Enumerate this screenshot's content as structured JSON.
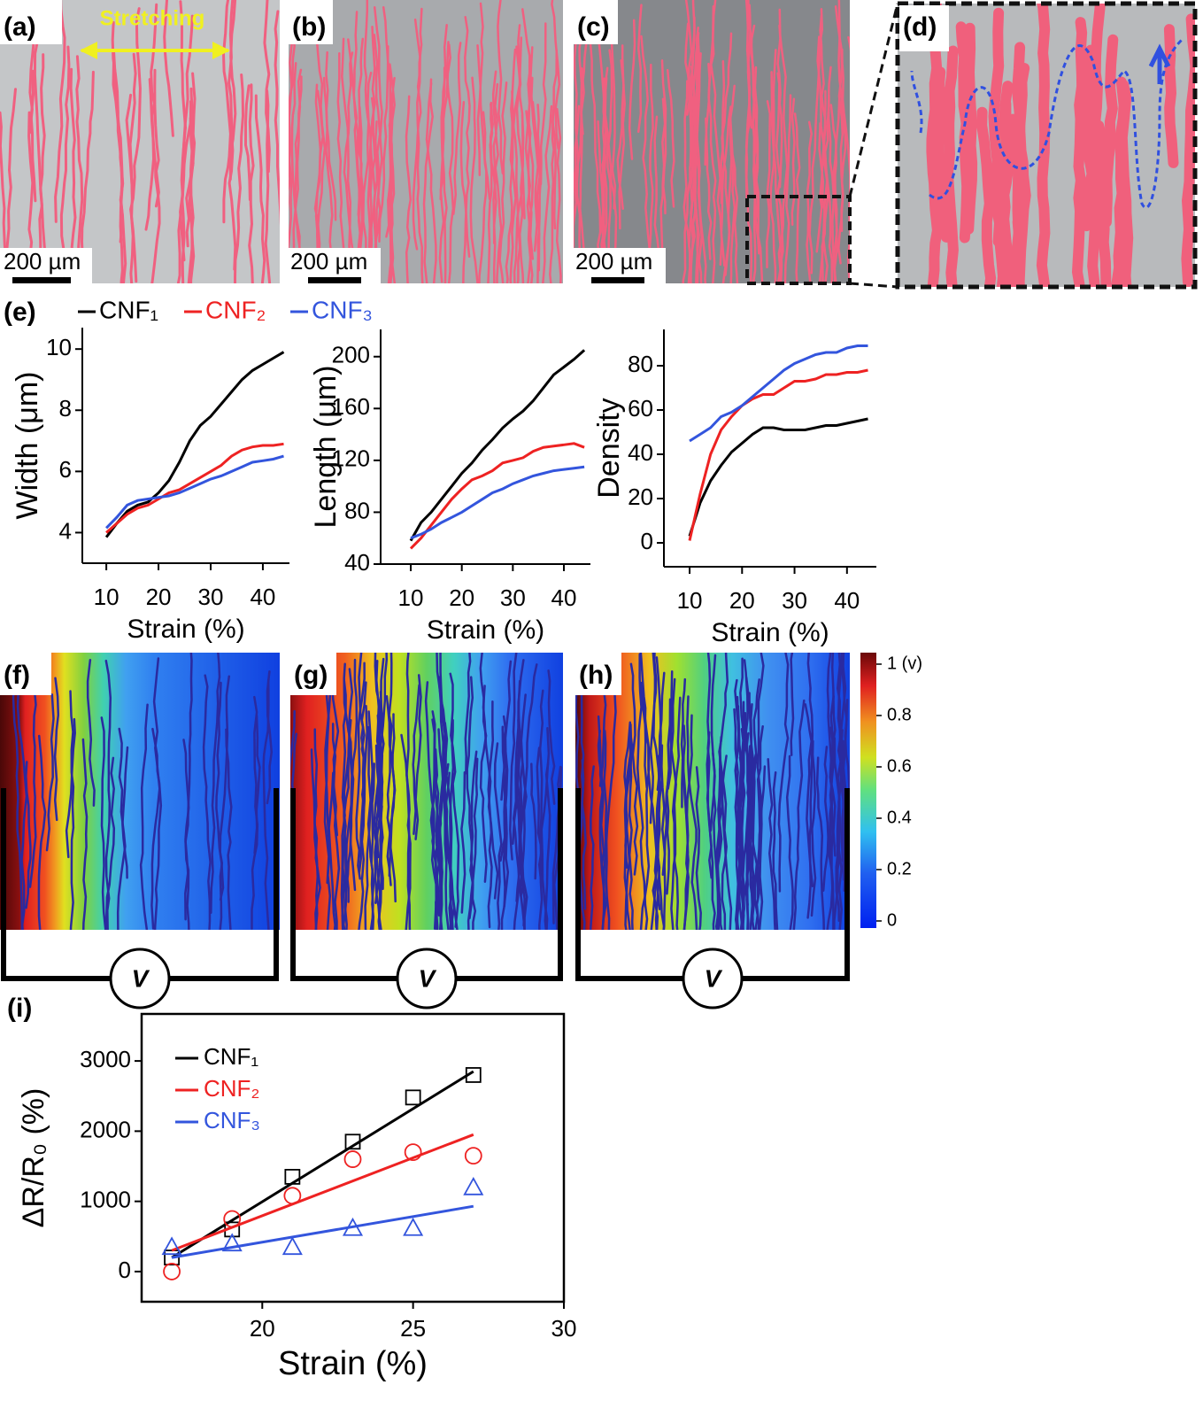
{
  "panels": {
    "a": {
      "label": "(a)",
      "annotation": "Stretching",
      "scale_bar": "200 µm"
    },
    "b": {
      "label": "(b)",
      "scale_bar": "200 µm"
    },
    "c": {
      "label": "(c)",
      "scale_bar": "200 µm"
    },
    "d": {
      "label": "(d)"
    },
    "e": {
      "label": "(e)"
    },
    "f": {
      "label": "(f)",
      "meter": "V"
    },
    "g": {
      "label": "(g)",
      "meter": "V"
    },
    "h": {
      "label": "(h)",
      "meter": "V"
    },
    "i": {
      "label": "(i)"
    }
  },
  "colorbar": {
    "lim": [
      0,
      1
    ],
    "ticks": [
      {
        "value": 1,
        "label": "1 (v)"
      },
      0.8,
      0.6,
      0.4,
      0.2,
      0
    ]
  },
  "chart_data": [
    {
      "type": "line",
      "legend": "above",
      "x_label": "Strain (%)",
      "y_label": "Width (μm)",
      "x": [
        10,
        12,
        14,
        16,
        18,
        20,
        22,
        24,
        26,
        28,
        30,
        32,
        34,
        36,
        38,
        40,
        42,
        44
      ],
      "xlim": [
        5.4,
        45.1
      ],
      "xticks": [
        10,
        20,
        30,
        40
      ],
      "ylim": [
        3,
        10.7
      ],
      "yticks": [
        4,
        6,
        8,
        10
      ],
      "series": [
        {
          "name": "CNF₁",
          "color": "#000000",
          "values": [
            3.85,
            4.3,
            4.7,
            4.9,
            5.0,
            5.3,
            5.7,
            6.3,
            7.0,
            7.5,
            7.8,
            8.2,
            8.6,
            9.0,
            9.3,
            9.5,
            9.7,
            9.9
          ]
        },
        {
          "name": "CNF₂",
          "color": "#ee2222",
          "values": [
            4.0,
            4.3,
            4.6,
            4.8,
            4.9,
            5.1,
            5.3,
            5.4,
            5.6,
            5.8,
            6.0,
            6.2,
            6.5,
            6.7,
            6.8,
            6.85,
            6.85,
            6.9
          ]
        },
        {
          "name": "CNF₃",
          "color": "#3355dd",
          "values": [
            4.15,
            4.5,
            4.9,
            5.05,
            5.1,
            5.15,
            5.2,
            5.3,
            5.45,
            5.6,
            5.75,
            5.85,
            6.0,
            6.15,
            6.3,
            6.35,
            6.4,
            6.5
          ]
        }
      ]
    },
    {
      "type": "line",
      "x_label": "Strain (%)",
      "y_label": "Length (μm)",
      "x": [
        10,
        12,
        14,
        16,
        18,
        20,
        22,
        24,
        26,
        28,
        30,
        32,
        34,
        36,
        38,
        40,
        42,
        44
      ],
      "xlim": [
        4.1,
        45.2
      ],
      "xticks": [
        10,
        20,
        30,
        40
      ],
      "ylim": [
        40,
        221
      ],
      "yticks": [
        40,
        80,
        120,
        160,
        200
      ],
      "series": [
        {
          "color": "#000000",
          "values": [
            58,
            72,
            80,
            90,
            100,
            110,
            118,
            128,
            136,
            145,
            152,
            158,
            166,
            176,
            186,
            192,
            198,
            205
          ]
        },
        {
          "color": "#ee2222",
          "values": [
            52,
            60,
            70,
            80,
            90,
            98,
            105,
            108,
            112,
            118,
            120,
            122,
            127,
            130,
            131,
            132,
            133,
            130
          ]
        },
        {
          "color": "#3355dd",
          "values": [
            60,
            63,
            67,
            72,
            76,
            80,
            85,
            90,
            95,
            98,
            102,
            105,
            108,
            110,
            112,
            113,
            114,
            115
          ]
        }
      ]
    },
    {
      "type": "line",
      "x_label": "Strain (%)",
      "y_label": "Density",
      "x": [
        10,
        12,
        14,
        16,
        18,
        20,
        22,
        24,
        26,
        28,
        30,
        32,
        34,
        36,
        38,
        40,
        42,
        44
      ],
      "xlim": [
        5.1,
        45.6
      ],
      "xticks": [
        10,
        20,
        30,
        40
      ],
      "ylim": [
        -10.8,
        96.4
      ],
      "yticks": [
        0,
        20,
        40,
        60,
        80
      ],
      "series": [
        {
          "color": "#000000",
          "values": [
            3,
            18,
            28,
            35,
            41,
            45,
            49,
            52,
            52,
            51,
            51,
            51,
            52,
            53,
            53,
            54,
            55,
            56
          ]
        },
        {
          "color": "#ee2222",
          "values": [
            1,
            22,
            40,
            51,
            57,
            62,
            65,
            67,
            67,
            70,
            73,
            73,
            74,
            76,
            76,
            77,
            77,
            78
          ]
        },
        {
          "color": "#3355dd",
          "values": [
            46,
            49,
            52,
            57,
            59,
            62,
            66,
            70,
            74,
            78,
            81,
            83,
            85,
            86,
            86,
            88,
            89,
            89
          ]
        }
      ]
    },
    {
      "type": "scatter",
      "legend": "upper left",
      "x_label": "Strain (%)",
      "y_label": "ΔR/R₀ (%)",
      "xlim": [
        16,
        30
      ],
      "xticks": [
        20,
        25,
        30
      ],
      "ylim": [
        -430,
        3670
      ],
      "yticks": [
        0,
        1000,
        2000,
        3000
      ],
      "series": [
        {
          "name": "CNF₁",
          "color": "#000000",
          "marker": "square",
          "x": [
            17,
            19,
            21,
            23,
            25,
            27
          ],
          "values": [
            200,
            600,
            1350,
            1850,
            2480,
            2800
          ],
          "fit": {
            "x": [
              17,
              27
            ],
            "values": [
              200,
              2850
            ]
          }
        },
        {
          "name": "CNF₂",
          "color": "#ee2222",
          "marker": "circle",
          "x": [
            17,
            19,
            21,
            23,
            25,
            27
          ],
          "values": [
            0,
            750,
            1080,
            1600,
            1700,
            1650
          ],
          "fit": {
            "x": [
              17,
              27
            ],
            "values": [
              300,
              1950
            ]
          }
        },
        {
          "name": "CNF₃",
          "color": "#3355dd",
          "marker": "triangle",
          "x": [
            17,
            19,
            21,
            23,
            25,
            27
          ],
          "values": [
            350,
            400,
            350,
            620,
            620,
            1200
          ],
          "fit": {
            "x": [
              17,
              27
            ],
            "values": [
              200,
              930
            ]
          }
        }
      ]
    }
  ]
}
